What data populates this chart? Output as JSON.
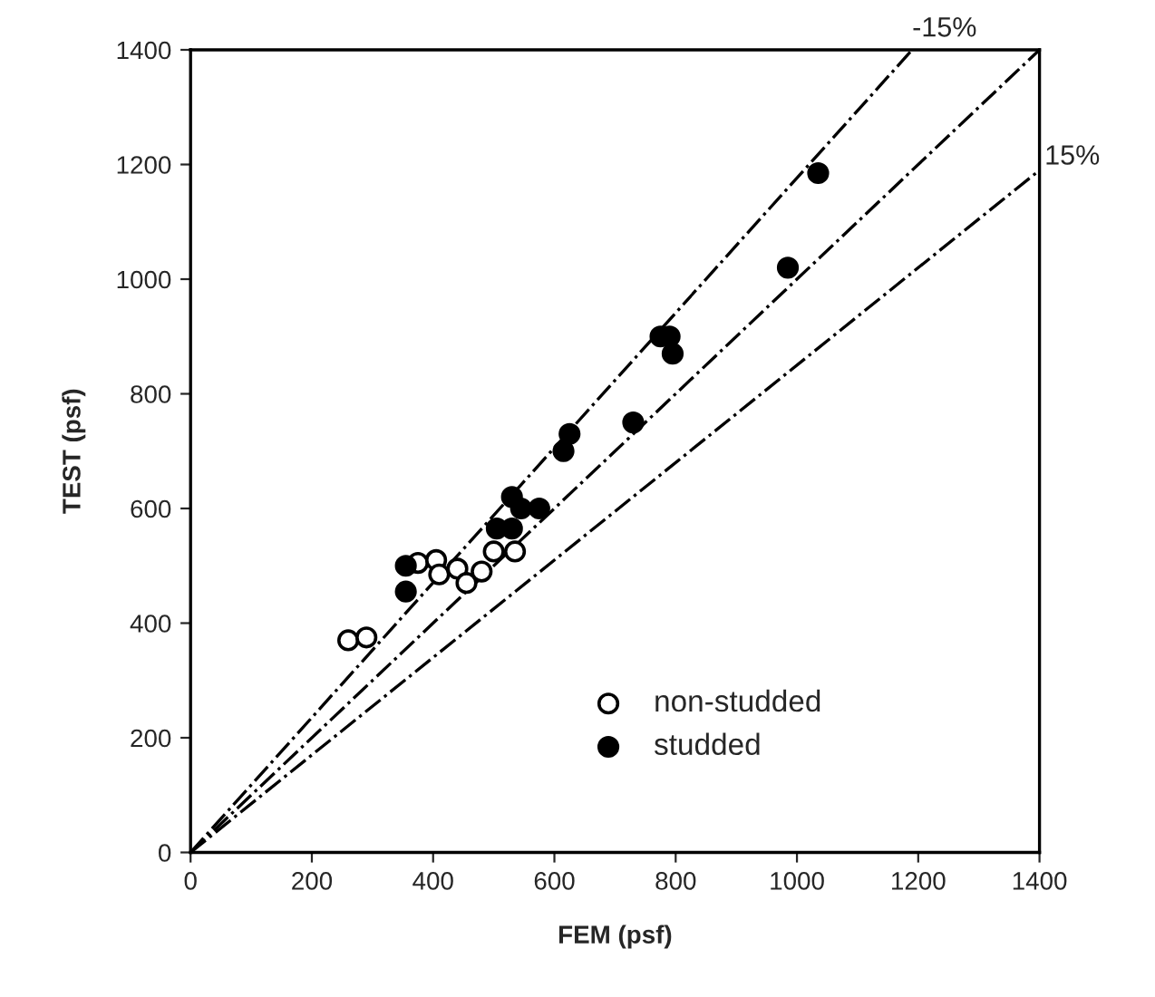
{
  "chart_data": {
    "type": "scatter",
    "xlabel": "FEM (psf)",
    "ylabel": "TEST (psf)",
    "xlim": [
      0,
      1400
    ],
    "ylim": [
      0,
      1400
    ],
    "xticks": [
      0,
      200,
      400,
      600,
      800,
      1000,
      1200,
      1400
    ],
    "yticks": [
      0,
      200,
      400,
      600,
      800,
      1000,
      1200,
      1400
    ],
    "grid": false,
    "legend": "bottom",
    "series": [
      {
        "name": "non-studded",
        "marker": "open circle",
        "color": "#000000",
        "x": [
          260,
          290,
          375,
          405,
          410,
          440,
          455,
          480,
          500,
          535
        ],
        "values": [
          370,
          375,
          505,
          510,
          485,
          495,
          470,
          490,
          525,
          525
        ]
      },
      {
        "name": "studded",
        "marker": "circle",
        "color": "#000000",
        "x": [
          355,
          355,
          505,
          530,
          530,
          545,
          575,
          615,
          625,
          730,
          775,
          790,
          795,
          985,
          1035
        ],
        "values": [
          455,
          500,
          565,
          620,
          565,
          600,
          600,
          700,
          730,
          750,
          900,
          900,
          870,
          1020,
          1185
        ]
      },
      {
        "type": "line",
        "line_style": "dashdot",
        "color": "#000000",
        "x": [
          0,
          1190
        ],
        "values": [
          0,
          1400
        ]
      },
      {
        "type": "line",
        "line_style": "dashdot",
        "color": "#000000",
        "x": [
          0,
          1400
        ],
        "values": [
          0,
          1400
        ]
      },
      {
        "type": "line",
        "line_style": "dashdot",
        "color": "#000000",
        "x": [
          0,
          1400
        ],
        "values": [
          0,
          1190
        ]
      }
    ],
    "annotations": [
      {
        "text": "-15%",
        "x": 1190,
        "y": 1400
      },
      {
        "text": "15%",
        "x": 1400,
        "y": 1190
      }
    ]
  }
}
